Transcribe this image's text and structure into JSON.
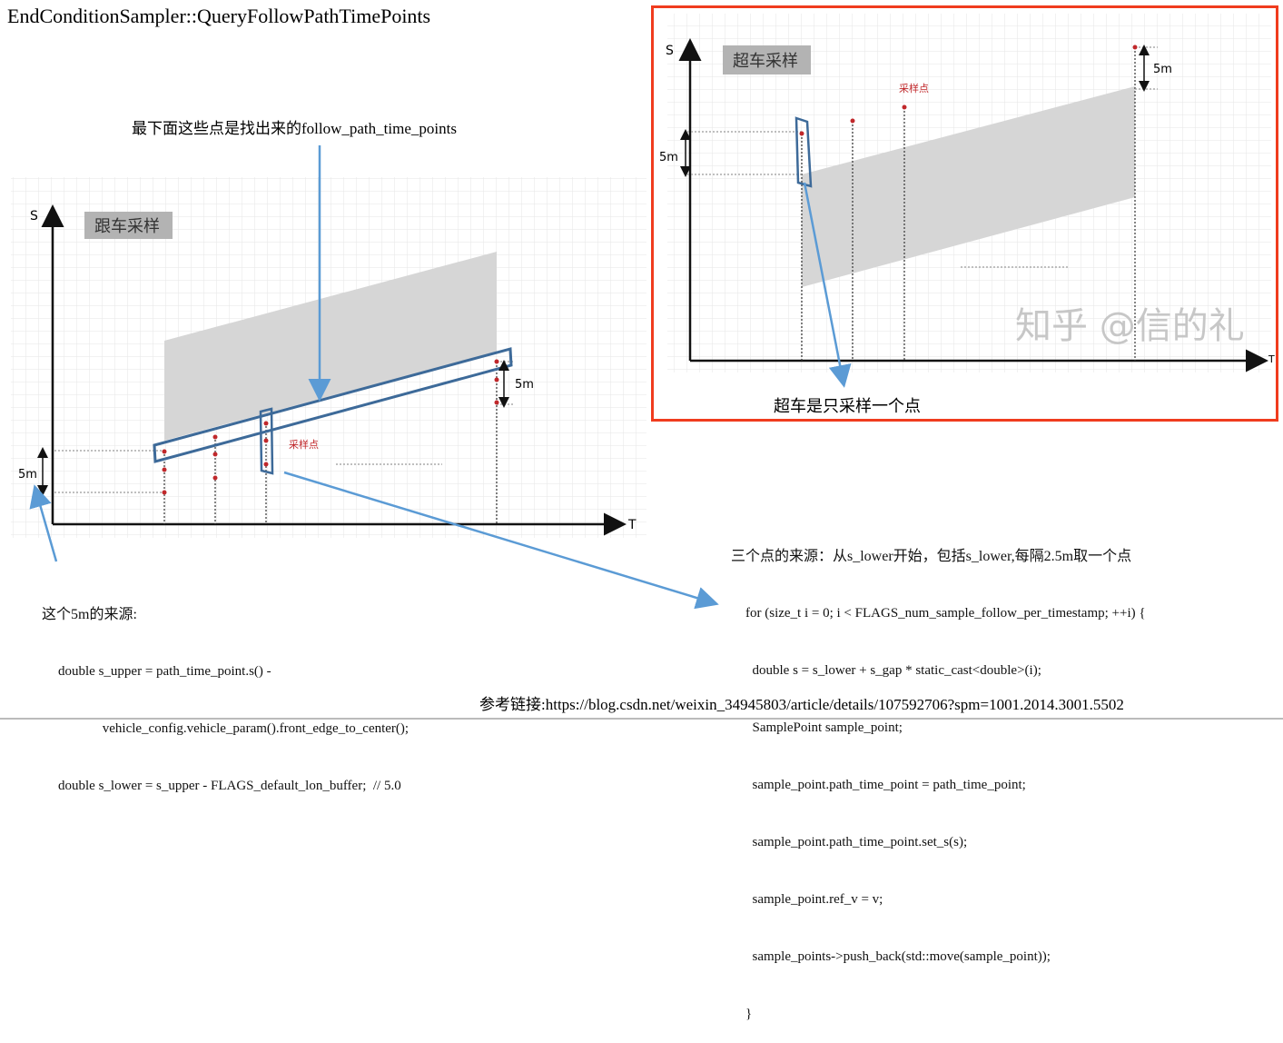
{
  "title": "EndConditionSampler::QueryFollowPathTimePoints",
  "top_annotation": "最下面这些点是找出来的follow_path_time_points",
  "follow_diagram": {
    "label": "跟车采样",
    "s_axis": "S",
    "t_axis": "T",
    "sample_label": "采样点",
    "gap_left": "5m",
    "gap_right": "5m"
  },
  "overtake_diagram": {
    "label": "超车采样",
    "s_axis": "S",
    "t_axis": "T",
    "sample_label": "采样点",
    "gap_left": "5m",
    "gap_right": "5m",
    "caption": "超车是只采样一个点",
    "watermark": "知乎 @信的礼",
    "border_color": "#f03c1e"
  },
  "note_5m": {
    "heading": "这个5m的来源:",
    "lines": [
      "double s_upper = path_time_point.s() -",
      "             vehicle_config.vehicle_param().front_edge_to_center();",
      "double s_lower = s_upper - FLAGS_default_lon_buffer;  // 5.0"
    ]
  },
  "note_points": {
    "heading": "三个点的来源：从s_lower开始，包括s_lower,每隔2.5m取一个点",
    "lines": [
      "for (size_t i = 0; i < FLAGS_num_sample_follow_per_timestamp; ++i) {",
      "  double s = s_lower + s_gap * static_cast<double>(i);",
      "  SamplePoint sample_point;",
      "  sample_point.path_time_point = path_time_point;",
      "  sample_point.path_time_point.set_s(s);",
      "  sample_point.ref_v = v;",
      "  sample_points->push_back(std::move(sample_point));",
      "}"
    ]
  },
  "reference": "参考链接:https://blog.csdn.net/weixin_34945803/article/details/107592706?spm=1001.2014.3001.5502",
  "colors": {
    "arrow": "#5b9bd5",
    "box": "#3d6a99",
    "sample": "#c0282b",
    "band": "#d6d6d6"
  }
}
